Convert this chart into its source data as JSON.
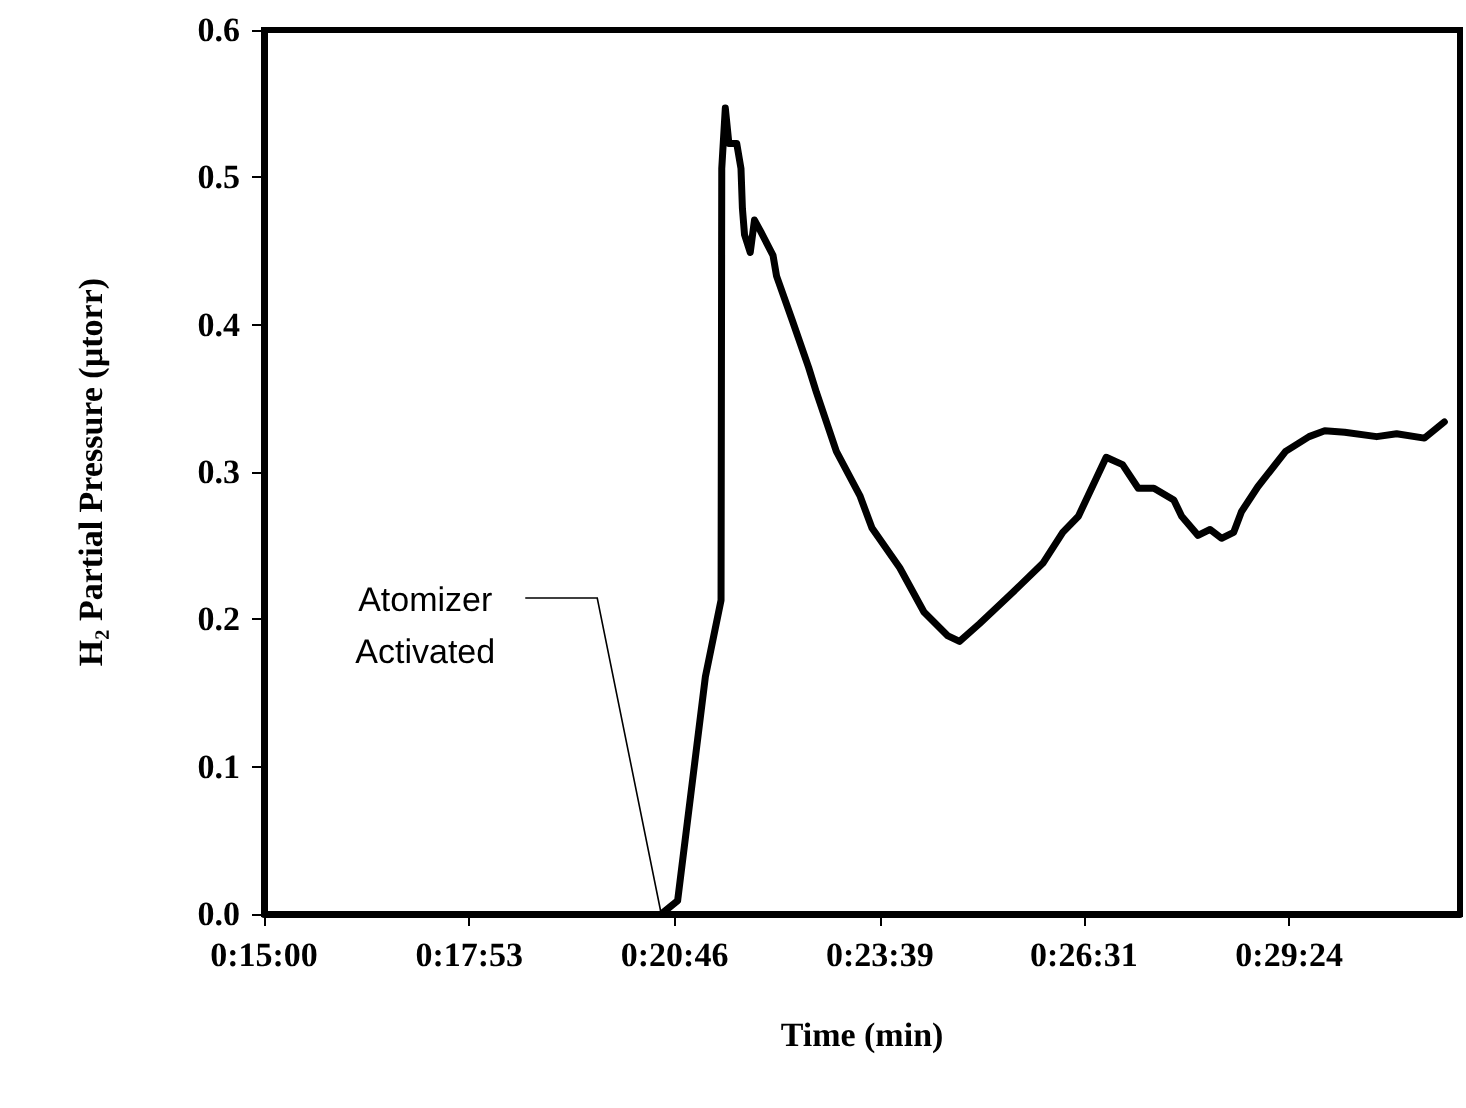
{
  "chart_data": {
    "type": "line",
    "xlabel": "Time (min)",
    "ylabel": "H₂ Partial Pressure (µtorr)",
    "xlim": [
      15,
      31.8
    ],
    "ylim": [
      0,
      0.6
    ],
    "xticks": [
      {
        "value": 15,
        "label": "0:15:00"
      },
      {
        "value": 17.883,
        "label": "0:17:53"
      },
      {
        "value": 20.767,
        "label": "0:20:46"
      },
      {
        "value": 23.65,
        "label": "0:23:39"
      },
      {
        "value": 26.517,
        "label": "0:26:31"
      },
      {
        "value": 29.4,
        "label": "0:29:24"
      }
    ],
    "yticks": [
      {
        "value": 0,
        "label": "0.0"
      },
      {
        "value": 0.1,
        "label": "0.1"
      },
      {
        "value": 0.2,
        "label": "0.2"
      },
      {
        "value": 0.3,
        "label": "0.3"
      },
      {
        "value": 0.4,
        "label": "0.4"
      },
      {
        "value": 0.5,
        "label": "0.5"
      },
      {
        "value": 0.6,
        "label": "0.6"
      }
    ],
    "grid": false,
    "marker": "none",
    "line_style": "solid",
    "series": [
      {
        "color": "#000000",
        "x": [
          20.58,
          20.81,
          21.2,
          21.42,
          21.43,
          21.48,
          21.53,
          21.64,
          21.7,
          21.72,
          21.75,
          21.83,
          21.89,
          21.98,
          22.15,
          22.2,
          22.42,
          22.65,
          22.76,
          23.04,
          23.37,
          23.54,
          23.93,
          24.27,
          24.6,
          24.77,
          25.05,
          25.49,
          25.94,
          26.22,
          26.44,
          26.83,
          27.06,
          27.28,
          27.5,
          27.78,
          27.89,
          28.12,
          28.29,
          28.45,
          28.62,
          28.73,
          28.96,
          29.35,
          29.68,
          29.9,
          30.18,
          30.63,
          30.91,
          31.3,
          31.58
        ],
        "values": [
          0,
          0.009,
          0.161,
          0.213,
          0.506,
          0.547,
          0.523,
          0.523,
          0.506,
          0.479,
          0.461,
          0.449,
          0.471,
          0.463,
          0.447,
          0.433,
          0.403,
          0.371,
          0.354,
          0.314,
          0.284,
          0.262,
          0.235,
          0.205,
          0.189,
          0.185,
          0.197,
          0.217,
          0.238,
          0.259,
          0.27,
          0.31,
          0.305,
          0.289,
          0.289,
          0.281,
          0.27,
          0.257,
          0.261,
          0.255,
          0.259,
          0.273,
          0.29,
          0.314,
          0.324,
          0.328,
          0.327,
          0.324,
          0.326,
          0.323,
          0.334
        ]
      }
    ],
    "annotations": [
      {
        "text": "Atomizer\nActivated",
        "x": 20.58,
        "y": 0
      }
    ]
  }
}
